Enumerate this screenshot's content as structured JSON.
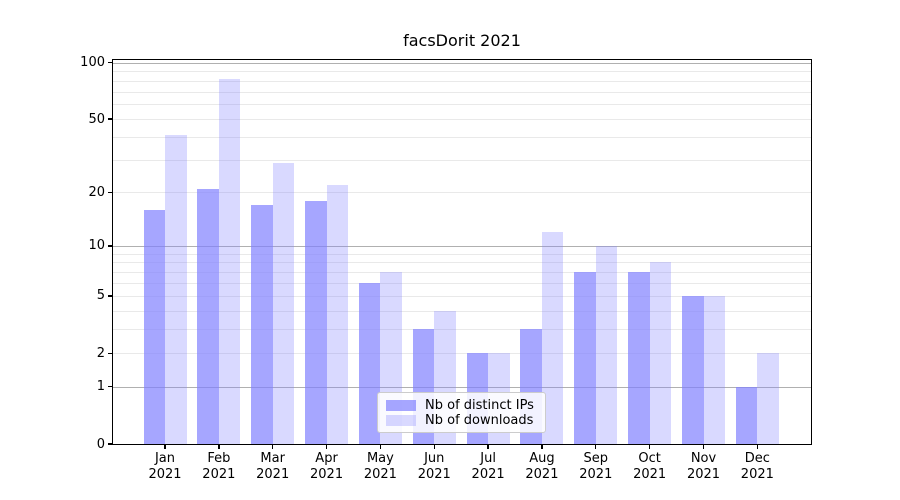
{
  "title": "facsDorit 2021",
  "colors": {
    "ips_bar": "rgba(128,128,255,0.70)",
    "downloads_bar": "rgba(128,128,255,0.30)",
    "ips_hex_on_white": "#a6a6ff",
    "downloads_hex_on_white": "#d9d9ff",
    "grid_major": "#b0b0b0",
    "grid_minor": "#e9e9e9",
    "spine": "#000000",
    "legend_border": "#cccccc",
    "background": "#ffffff",
    "text": "#000000"
  },
  "legend": {
    "items": [
      {
        "label": "Nb of distinct IPs",
        "series": "ips"
      },
      {
        "label": "Nb of downloads",
        "series": "downloads"
      }
    ]
  },
  "x_axis": {
    "months": [
      "Jan",
      "Feb",
      "Mar",
      "Apr",
      "May",
      "Jun",
      "Jul",
      "Aug",
      "Sep",
      "Oct",
      "Nov",
      "Dec"
    ],
    "year": "2021"
  },
  "y_axis": {
    "tick_labels": [
      "0",
      "1",
      "2",
      "5",
      "10",
      "20",
      "50",
      "100"
    ],
    "scale": "log10(1+x)"
  },
  "chart_data": {
    "type": "bar",
    "title": "facsDorit 2021",
    "categories": [
      "Jan 2021",
      "Feb 2021",
      "Mar 2021",
      "Apr 2021",
      "May 2021",
      "Jun 2021",
      "Jul 2021",
      "Aug 2021",
      "Sep 2021",
      "Oct 2021",
      "Nov 2021",
      "Dec 2021"
    ],
    "series": [
      {
        "name": "Nb of distinct IPs",
        "values": [
          16,
          21,
          17,
          18,
          6,
          3,
          2,
          3,
          7,
          7,
          5,
          1
        ]
      },
      {
        "name": "Nb of downloads",
        "values": [
          41,
          82,
          29,
          22,
          7,
          4,
          2,
          12,
          10,
          8,
          5,
          2
        ]
      }
    ],
    "xlabel": "",
    "ylabel": "",
    "yscale": "log1p",
    "yticks": [
      0,
      1,
      2,
      5,
      10,
      20,
      50,
      100
    ],
    "ylim": [
      0,
      103
    ],
    "grid": true,
    "legend_position": "lower center"
  }
}
